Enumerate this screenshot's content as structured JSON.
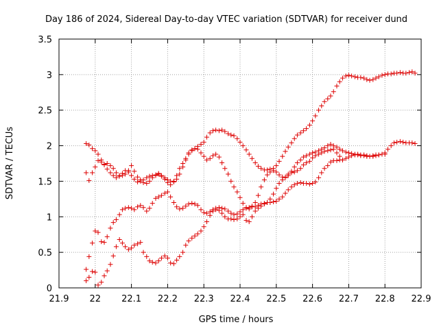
{
  "chart_data": {
    "type": "scatter",
    "title": "Day 186 of 2024, Sidereal Day-to-day VTEC variation (SDTVAR) for receiver dund",
    "xlabel": "GPS time / hours",
    "ylabel": "SDTVAR / TECUs",
    "xlim": [
      21.9,
      22.9
    ],
    "ylim": [
      0,
      3.5
    ],
    "xticks": [
      "21.9",
      "22",
      "22.1",
      "22.2",
      "22.3",
      "22.4",
      "22.5",
      "22.6",
      "22.7",
      "22.8",
      "22.9"
    ],
    "yticks": [
      "0",
      "0.5",
      "1",
      "1.5",
      "2",
      "2.5",
      "3",
      "3.5"
    ],
    "grid": true,
    "marker": "+",
    "marker_color": "#dd0000",
    "series": [
      {
        "name": "series-1",
        "x": [
          21.975,
          21.983,
          21.992,
          22.0,
          22.008,
          22.017,
          22.025,
          22.033,
          22.042,
          22.05,
          22.058,
          22.067,
          22.075,
          22.083,
          22.092,
          22.1,
          22.108,
          22.117,
          22.125,
          22.133,
          22.142,
          22.15,
          22.158,
          22.167,
          22.175,
          22.183,
          22.192,
          22.2,
          22.208,
          22.217,
          22.225,
          22.233,
          22.242,
          22.25,
          22.258,
          22.267,
          22.275,
          22.283,
          22.292,
          22.3,
          22.308,
          22.317,
          22.325,
          22.333,
          22.342,
          22.35,
          22.358,
          22.367,
          22.375,
          22.383,
          22.392,
          22.4,
          22.408,
          22.417,
          22.425,
          22.433,
          22.442,
          22.45,
          22.458,
          22.467,
          22.475,
          22.483,
          22.492,
          22.5,
          22.508,
          22.517,
          22.525,
          22.533,
          22.542,
          22.55,
          22.558,
          22.567,
          22.575,
          22.583,
          22.592,
          22.6,
          22.608,
          22.617,
          22.625,
          22.633,
          22.642,
          22.65,
          22.658,
          22.667,
          22.675,
          22.683,
          22.692,
          22.7,
          22.708,
          22.717,
          22.725,
          22.733,
          22.742,
          22.75,
          22.758,
          22.767,
          22.775,
          22.783,
          22.792,
          22.8,
          22.808,
          22.817,
          22.825,
          22.833,
          22.842,
          22.85,
          22.858,
          22.867,
          22.875,
          22.883
        ],
        "y": [
          2.03,
          2.01,
          1.96,
          1.93,
          1.88,
          1.8,
          1.73,
          1.67,
          1.62,
          1.58,
          1.55,
          1.58,
          1.61,
          1.65,
          1.63,
          1.58,
          1.53,
          1.49,
          1.5,
          1.52,
          1.55,
          1.57,
          1.58,
          1.59,
          1.6,
          1.58,
          1.55,
          1.52,
          1.5,
          1.49,
          1.53,
          1.6,
          1.7,
          1.8,
          1.88,
          1.93,
          1.96,
          1.99,
          2.02,
          2.05,
          2.12,
          2.18,
          2.21,
          2.22,
          2.21,
          2.22,
          2.2,
          2.17,
          2.15,
          2.14,
          2.1,
          2.05,
          2.0,
          1.94,
          1.88,
          1.82,
          1.76,
          1.71,
          1.68,
          1.66,
          1.66,
          1.67,
          1.68,
          1.72,
          1.78,
          1.85,
          1.92,
          1.98,
          2.04,
          2.1,
          2.15,
          2.18,
          2.21,
          2.24,
          2.29,
          2.35,
          2.42,
          2.5,
          2.56,
          2.62,
          2.66,
          2.7,
          2.76,
          2.84,
          2.9,
          2.95,
          2.98,
          2.99,
          2.98,
          2.97,
          2.96,
          2.96,
          2.95,
          2.93,
          2.92,
          2.93,
          2.95,
          2.97,
          2.99,
          3.0,
          3.01,
          3.01,
          3.02,
          3.02,
          3.03,
          3.02,
          3.02,
          3.03,
          3.04,
          3.02
        ]
      },
      {
        "name": "series-2",
        "x": [
          21.975,
          21.983,
          21.992,
          22.0,
          22.008,
          22.017,
          22.025,
          22.033,
          22.042,
          22.05,
          22.058,
          22.067,
          22.075,
          22.083,
          22.092,
          22.1,
          22.108,
          22.117,
          22.125,
          22.133,
          22.142,
          22.15,
          22.158,
          22.167,
          22.175,
          22.183,
          22.192,
          22.2,
          22.208,
          22.217,
          22.225,
          22.233,
          22.242,
          22.25,
          22.258,
          22.267,
          22.275,
          22.283,
          22.292,
          22.3,
          22.308,
          22.317,
          22.325,
          22.333,
          22.342,
          22.35,
          22.358,
          22.367,
          22.375,
          22.383,
          22.392,
          22.4,
          22.408,
          22.417,
          22.425,
          22.433,
          22.442,
          22.45,
          22.458,
          22.467,
          22.475,
          22.483,
          22.492,
          22.5,
          22.508,
          22.517,
          22.525,
          22.533,
          22.542,
          22.55,
          22.558,
          22.567,
          22.575,
          22.583,
          22.592,
          22.6,
          22.608,
          22.617,
          22.625,
          22.633,
          22.642,
          22.65,
          22.658,
          22.667,
          22.675,
          22.683,
          22.692,
          22.7,
          22.708,
          22.717,
          22.725,
          22.733,
          22.742,
          22.75,
          22.758,
          22.767,
          22.775,
          22.783,
          22.792,
          22.8,
          22.808,
          22.817,
          22.825,
          22.833,
          22.842,
          22.85,
          22.858,
          22.867,
          22.875,
          22.883
        ],
        "y": [
          1.62,
          1.51,
          1.62,
          1.7,
          1.79,
          1.77,
          1.74,
          1.75,
          1.72,
          1.68,
          1.62,
          1.57,
          1.58,
          1.6,
          1.65,
          1.72,
          1.64,
          1.56,
          1.52,
          1.48,
          1.47,
          1.5,
          1.55,
          1.58,
          1.61,
          1.57,
          1.53,
          1.48,
          1.45,
          1.5,
          1.58,
          1.68,
          1.75,
          1.82,
          1.9,
          1.94,
          1.96,
          1.95,
          1.9,
          1.85,
          1.8,
          1.82,
          1.86,
          1.88,
          1.84,
          1.76,
          1.68,
          1.6,
          1.5,
          1.42,
          1.35,
          1.27,
          1.19,
          1.13,
          1.11,
          1.14,
          1.2,
          1.3,
          1.42,
          1.52,
          1.59,
          1.63,
          1.65,
          1.63,
          1.59,
          1.56,
          1.55,
          1.58,
          1.64,
          1.7,
          1.76,
          1.8,
          1.84,
          1.86,
          1.88,
          1.9,
          1.91,
          1.93,
          1.95,
          1.97,
          2.0,
          2.02,
          2.0,
          1.98,
          1.95,
          1.93,
          1.91,
          1.9,
          1.89,
          1.88,
          1.87,
          1.86,
          1.86,
          1.85,
          1.85,
          1.85,
          1.86,
          1.87,
          1.88,
          1.9,
          1.95,
          2.0,
          2.04,
          2.05,
          2.06,
          2.05,
          2.04,
          2.04,
          2.04,
          2.03
        ]
      },
      {
        "name": "series-3",
        "x": [
          21.975,
          21.983,
          21.992,
          22.0,
          22.008,
          22.017,
          22.025,
          22.033,
          22.042,
          22.05,
          22.058,
          22.067,
          22.075,
          22.083,
          22.092,
          22.1,
          22.108,
          22.117,
          22.125,
          22.133,
          22.142,
          22.15,
          22.158,
          22.167,
          22.175,
          22.183,
          22.192,
          22.2,
          22.208,
          22.217,
          22.225,
          22.233,
          22.242,
          22.25,
          22.258,
          22.267,
          22.275,
          22.283,
          22.292,
          22.3,
          22.308,
          22.317,
          22.325,
          22.333,
          22.342,
          22.35,
          22.358,
          22.367,
          22.375,
          22.383,
          22.392,
          22.4,
          22.408,
          22.417,
          22.425,
          22.433,
          22.442,
          22.45,
          22.458,
          22.467,
          22.475,
          22.483,
          22.492,
          22.5,
          22.508,
          22.517,
          22.525,
          22.533,
          22.542,
          22.55,
          22.558,
          22.567,
          22.575,
          22.583,
          22.592,
          22.6,
          22.608,
          22.617,
          22.625,
          22.633,
          22.642,
          22.65,
          22.658,
          22.667,
          22.675,
          22.683,
          22.692,
          22.7,
          22.708,
          22.717,
          22.725,
          22.733,
          22.742,
          22.75,
          22.758,
          22.767,
          22.775,
          22.783,
          22.792,
          22.8
        ],
        "y": [
          0.26,
          0.44,
          0.63,
          0.8,
          0.78,
          0.65,
          0.64,
          0.72,
          0.84,
          0.92,
          0.96,
          1.03,
          1.1,
          1.12,
          1.13,
          1.12,
          1.1,
          1.14,
          1.16,
          1.13,
          1.08,
          1.12,
          1.19,
          1.26,
          1.28,
          1.3,
          1.33,
          1.35,
          1.28,
          1.2,
          1.14,
          1.11,
          1.12,
          1.15,
          1.18,
          1.19,
          1.18,
          1.16,
          1.1,
          1.06,
          1.05,
          1.07,
          1.1,
          1.12,
          1.13,
          1.12,
          1.11,
          1.08,
          1.05,
          1.03,
          1.04,
          1.07,
          1.1,
          1.12,
          1.13,
          1.15,
          1.14,
          1.16,
          1.18,
          1.19,
          1.2,
          1.2,
          1.21,
          1.22,
          1.25,
          1.28,
          1.33,
          1.38,
          1.42,
          1.45,
          1.47,
          1.48,
          1.47,
          1.47,
          1.46,
          1.47,
          1.49,
          1.55,
          1.62,
          1.68,
          1.72,
          1.77,
          1.79,
          1.79,
          1.8,
          1.8,
          1.82,
          1.84,
          1.86,
          1.87,
          1.88,
          1.87,
          1.87,
          1.86,
          1.85,
          1.86,
          1.87,
          1.87,
          1.88,
          1.88
        ]
      },
      {
        "name": "series-4",
        "x": [
          21.975,
          21.983,
          21.992,
          22.0,
          22.008,
          22.017,
          22.025,
          22.033,
          22.042,
          22.05,
          22.058,
          22.067,
          22.075,
          22.083,
          22.092,
          22.1,
          22.108,
          22.117,
          22.125,
          22.133,
          22.142,
          22.15,
          22.158,
          22.167,
          22.175,
          22.183,
          22.192,
          22.2,
          22.208,
          22.217,
          22.225,
          22.233,
          22.242,
          22.25,
          22.258,
          22.267,
          22.275,
          22.283,
          22.292,
          22.3,
          22.308,
          22.317,
          22.325,
          22.333,
          22.342,
          22.35,
          22.358,
          22.367,
          22.375,
          22.383,
          22.392,
          22.4,
          22.408,
          22.417,
          22.425,
          22.433,
          22.442,
          22.45,
          22.458,
          22.467,
          22.475,
          22.483,
          22.492,
          22.5,
          22.508,
          22.517,
          22.525,
          22.533,
          22.542,
          22.55,
          22.558,
          22.567,
          22.575,
          22.583,
          22.592,
          22.6,
          22.608,
          22.617,
          22.625,
          22.633,
          22.642,
          22.65,
          22.658,
          22.667,
          22.675,
          22.683
        ],
        "y": [
          0.1,
          0.15,
          0.23,
          0.22,
          0.04,
          0.08,
          0.17,
          0.24,
          0.33,
          0.45,
          0.58,
          0.68,
          0.63,
          0.58,
          0.54,
          0.56,
          0.6,
          0.62,
          0.64,
          0.5,
          0.44,
          0.38,
          0.36,
          0.35,
          0.38,
          0.42,
          0.45,
          0.42,
          0.35,
          0.34,
          0.39,
          0.44,
          0.5,
          0.6,
          0.66,
          0.7,
          0.73,
          0.76,
          0.8,
          0.86,
          0.93,
          1.02,
          1.08,
          1.1,
          1.09,
          1.05,
          1.0,
          0.97,
          0.97,
          0.96,
          0.97,
          1.0,
          1.03,
          0.95,
          0.93,
          1.0,
          1.08,
          1.12,
          1.15,
          1.18,
          1.2,
          1.25,
          1.32,
          1.4,
          1.47,
          1.52,
          1.56,
          1.6,
          1.62,
          1.63,
          1.65,
          1.68,
          1.73,
          1.76,
          1.78,
          1.83,
          1.86,
          1.88,
          1.9,
          1.92,
          1.93,
          1.94,
          1.95,
          1.9,
          1.85,
          1.8
        ]
      }
    ]
  }
}
